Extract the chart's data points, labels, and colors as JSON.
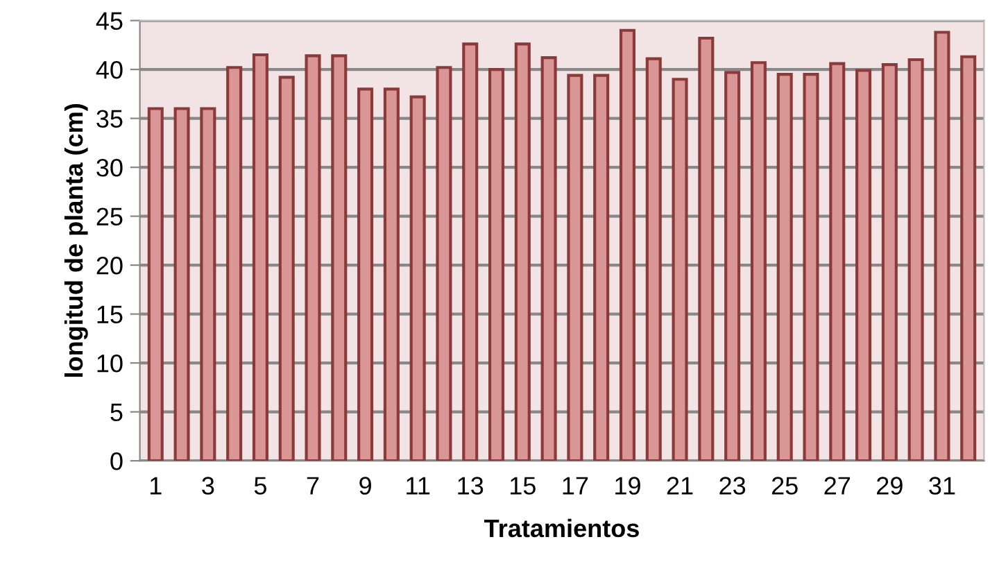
{
  "chart_data": {
    "type": "bar",
    "xlabel": "Tratamientos",
    "ylabel": "longitud de planta (cm)",
    "categories": [
      "1",
      null,
      "3",
      null,
      "5",
      null,
      "7",
      null,
      "9",
      null,
      "11",
      null,
      "13",
      null,
      "15",
      null,
      "17",
      null,
      "19",
      null,
      "21",
      null,
      "23",
      null,
      "25",
      null,
      "27",
      null,
      "29",
      null,
      "31",
      null
    ],
    "values": [
      36,
      36,
      36,
      40.2,
      41.5,
      39.2,
      41.4,
      41.4,
      38,
      38,
      37.2,
      40.2,
      42.6,
      40,
      42.6,
      41.2,
      39.4,
      39.4,
      44,
      41.1,
      39,
      43.2,
      39.7,
      40.7,
      39.5,
      39.5,
      40.6,
      39.9,
      40.5,
      41,
      43.8,
      41.3
    ],
    "color": "#d99694",
    "ylim": [
      0,
      45
    ],
    "yticks": [
      0,
      5,
      10,
      15,
      20,
      25,
      30,
      35,
      40,
      45
    ],
    "grid": "y"
  }
}
